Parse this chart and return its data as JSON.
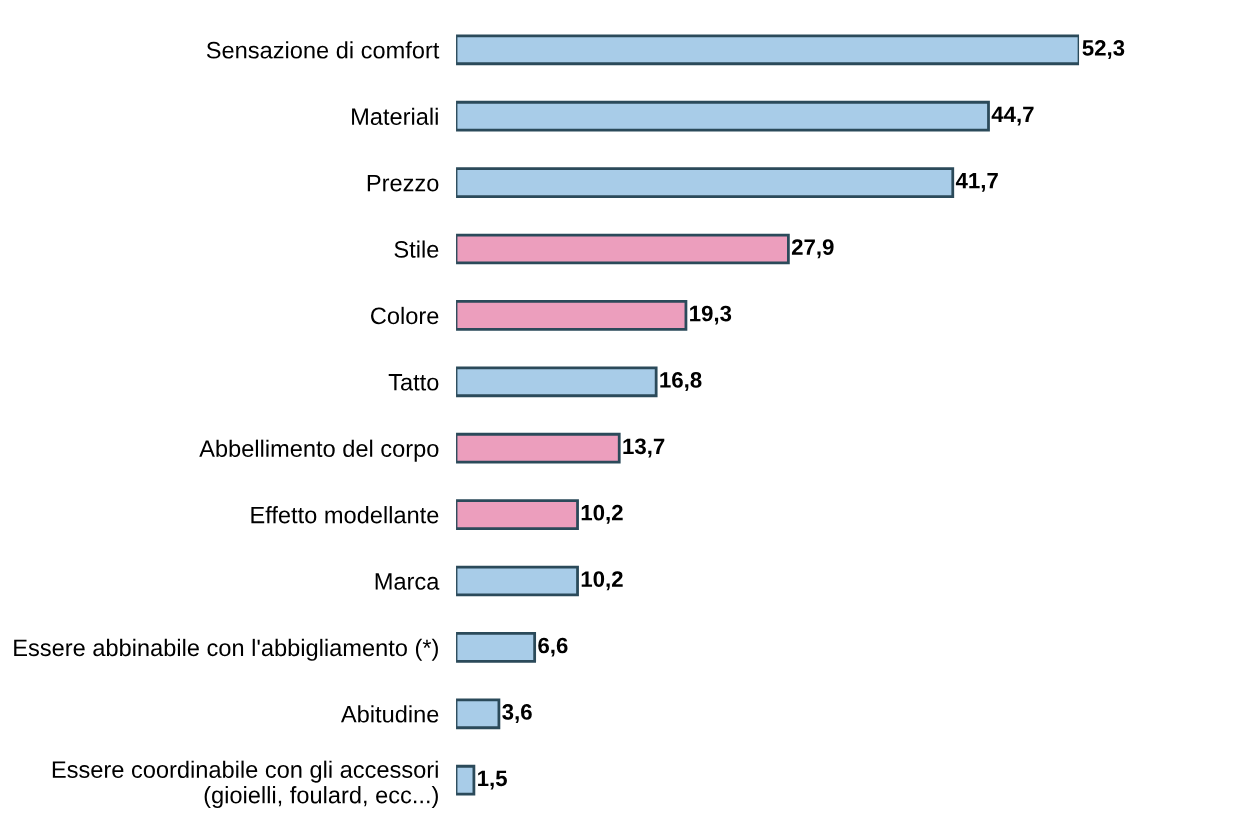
{
  "chart_data": {
    "type": "bar",
    "orientation": "horizontal",
    "categories": [
      "Sensazione di comfort",
      "Materiali",
      "Prezzo",
      "Stile",
      "Colore",
      "Tatto",
      "Abbellimento del corpo",
      "Effetto modellante",
      "Marca",
      "Essere abbinabile con l'abbigliamento (*)",
      "Abitudine",
      "Essere coordinabile con gli accessori\n(gioielli, foulard, ecc...)"
    ],
    "values": [
      52.3,
      44.7,
      41.7,
      27.9,
      19.3,
      16.8,
      13.7,
      10.2,
      10.2,
      6.6,
      3.6,
      1.5
    ],
    "value_labels": [
      "52,3",
      "44,7",
      "41,7",
      "27,9",
      "19,3",
      "16,8",
      "13,7",
      "10,2",
      "10,2",
      "6,6",
      "3,6",
      "1,5"
    ],
    "colors": [
      "#a8cce8",
      "#a8cce8",
      "#a8cce8",
      "#ec9ebd",
      "#ec9ebd",
      "#a8cce8",
      "#ec9ebd",
      "#ec9ebd",
      "#a8cce8",
      "#a8cce8",
      "#a8cce8",
      "#a8cce8"
    ]
  }
}
